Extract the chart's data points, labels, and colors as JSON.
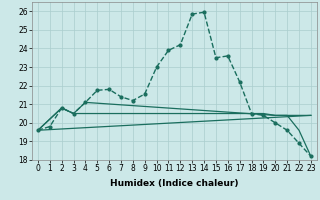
{
  "xlabel": "Humidex (Indice chaleur)",
  "xlim": [
    -0.5,
    23.5
  ],
  "ylim": [
    18,
    26.5
  ],
  "background_color": "#cce8e8",
  "grid_color": "#aacece",
  "line_color": "#1a6e5e",
  "lines": [
    {
      "x": [
        0,
        1,
        2,
        3,
        4,
        5,
        6,
        7,
        8,
        9,
        10,
        11,
        12,
        13,
        14,
        15,
        16,
        17,
        18,
        19,
        20,
        21,
        22,
        23
      ],
      "y": [
        19.6,
        19.8,
        20.8,
        20.5,
        21.1,
        21.75,
        21.8,
        21.4,
        21.2,
        21.55,
        23.0,
        23.9,
        24.2,
        25.85,
        25.95,
        23.5,
        23.6,
        22.2,
        20.5,
        20.4,
        20.0,
        19.6,
        18.9,
        18.2
      ],
      "marker": ".",
      "markersize": 4,
      "linewidth": 1.0,
      "linestyle": "--"
    },
    {
      "x": [
        0,
        2,
        3,
        4,
        20,
        21,
        22,
        23
      ],
      "y": [
        19.6,
        20.8,
        20.5,
        21.1,
        20.4,
        20.4,
        19.6,
        18.2
      ],
      "marker": null,
      "markersize": 0,
      "linewidth": 0.9,
      "linestyle": "-"
    },
    {
      "x": [
        0,
        2,
        3,
        19,
        20,
        23
      ],
      "y": [
        19.6,
        20.8,
        20.5,
        20.5,
        20.4,
        20.4
      ],
      "marker": null,
      "markersize": 0,
      "linewidth": 0.9,
      "linestyle": "-"
    },
    {
      "x": [
        0,
        23
      ],
      "y": [
        19.6,
        20.4
      ],
      "marker": null,
      "markersize": 0,
      "linewidth": 0.9,
      "linestyle": "-"
    }
  ],
  "yticks": [
    18,
    19,
    20,
    21,
    22,
    23,
    24,
    25,
    26
  ],
  "xticks": [
    0,
    1,
    2,
    3,
    4,
    5,
    6,
    7,
    8,
    9,
    10,
    11,
    12,
    13,
    14,
    15,
    16,
    17,
    18,
    19,
    20,
    21,
    22,
    23
  ],
  "xtick_labels": [
    "0",
    "1",
    "2",
    "3",
    "4",
    "5",
    "6",
    "7",
    "8",
    "9",
    "10",
    "11",
    "12",
    "13",
    "14",
    "15",
    "16",
    "17",
    "18",
    "19",
    "20",
    "21",
    "22",
    "23"
  ],
  "tick_fontsize": 5.5,
  "xlabel_fontsize": 6.5
}
